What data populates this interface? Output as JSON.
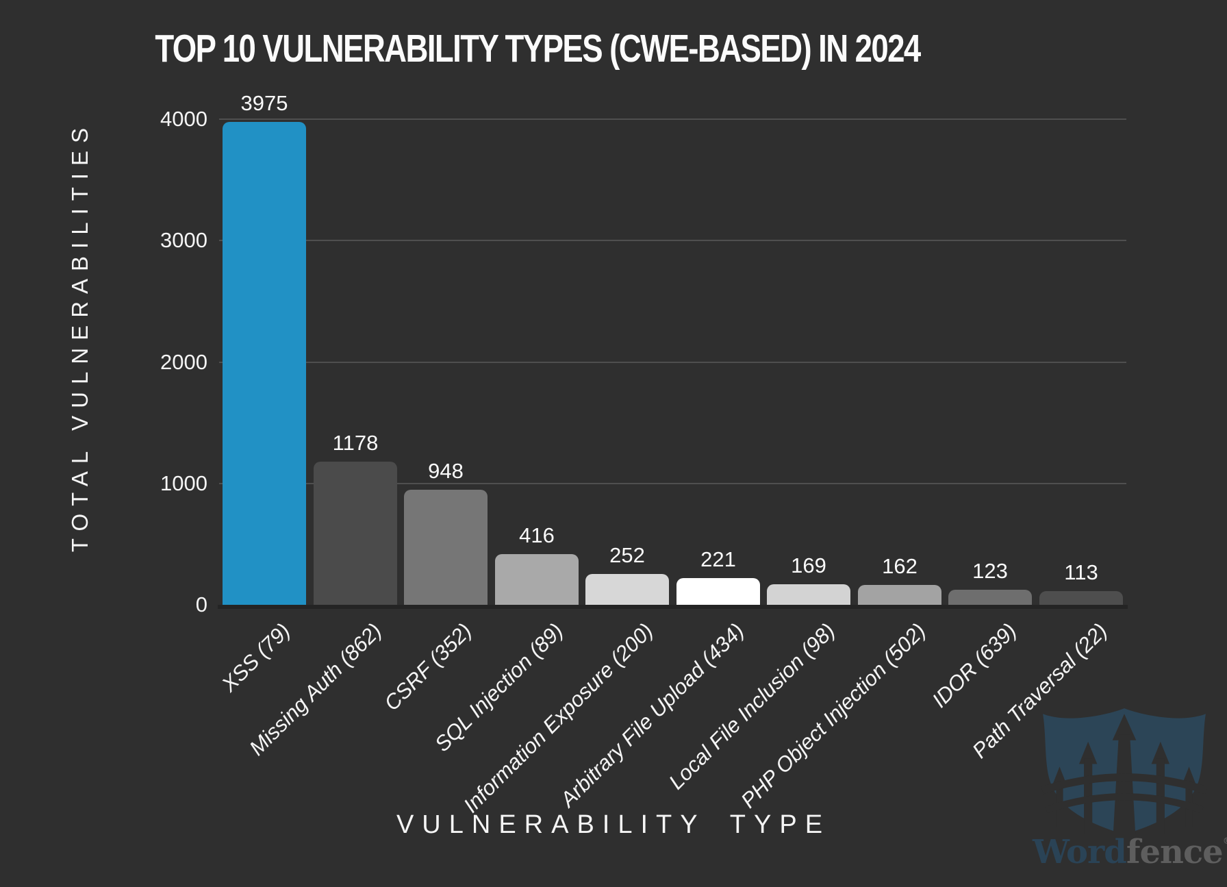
{
  "page": {
    "background": "#2f2f2f",
    "text_color": "#f5f5f5"
  },
  "chart_data": {
    "type": "bar",
    "title": "TOP 10 VULNERABILITY TYPES (CWE-BASED) IN 2024",
    "xlabel": "VULNERABILITY TYPE",
    "ylabel": "TOTAL VULNERABILITIES",
    "categories": [
      "XSS (79)",
      "Missing Auth (862)",
      "CSRF (352)",
      "SQL Injection (89)",
      "Information Exposure (200)",
      "Arbitrary File Upload (434)",
      "Local File Inclusion (98)",
      "PHP Object Injection (502)",
      "IDOR (639)",
      "Path Traversal (22)"
    ],
    "values": [
      3975,
      1178,
      948,
      416,
      252,
      221,
      169,
      162,
      123,
      113
    ],
    "bar_colors": [
      "#2191c5",
      "#4b4b4b",
      "#767676",
      "#a9a9a9",
      "#d7d7d7",
      "#ffffff",
      "#d3d3d3",
      "#a3a3a3",
      "#6e6e6e",
      "#4e4e4e"
    ],
    "accent_color": "#2191c5",
    "ylim": [
      0,
      4000
    ],
    "yticks": [
      0,
      1000,
      2000,
      3000,
      4000
    ],
    "grid": "horizontal",
    "gridline_color": "#4f4f4f",
    "baseline_color": "#242424",
    "legend": "none"
  },
  "watermark": {
    "word": "Word",
    "fence": "fence",
    "registered": "®",
    "shield_color": "#2c4557",
    "picket_color": "#2f2f2f",
    "word_color": "#2a4356",
    "fence_color": "#5e5e5e"
  }
}
